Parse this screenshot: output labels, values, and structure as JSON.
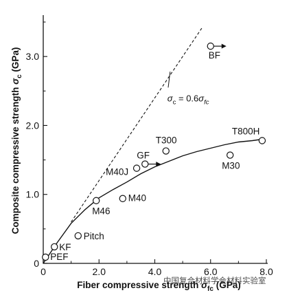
{
  "chart_data": {
    "type": "scatter",
    "xlabel_main": "Fiber compressive strength",
    "xlabel_symbol": "σ",
    "xlabel_sub": "fc",
    "xlabel_unit": "(GPa)",
    "ylabel_main": "Composite compressive strength",
    "ylabel_symbol": "σ",
    "ylabel_sub": "c",
    "ylabel_unit": "(GPa)",
    "xlim": [
      0,
      8.0
    ],
    "ylim": [
      0,
      3.6
    ],
    "xticks": [
      "0",
      "2.0",
      "4.0",
      "6.0",
      "8.0"
    ],
    "yticks": [
      "0",
      "1.0",
      "2.0",
      "3.0"
    ],
    "grid": false,
    "points": [
      {
        "label": "PEF",
        "x": 0.08,
        "y": 0.09
      },
      {
        "label": "KF",
        "x": 0.4,
        "y": 0.24
      },
      {
        "label": "Pitch",
        "x": 1.25,
        "y": 0.4
      },
      {
        "label": "M46",
        "x": 1.9,
        "y": 0.91
      },
      {
        "label": "M40",
        "x": 2.85,
        "y": 0.94
      },
      {
        "label": "M40J",
        "x": 3.35,
        "y": 1.38
      },
      {
        "label": "GF",
        "x": 3.65,
        "y": 1.44
      },
      {
        "label": "T300",
        "x": 4.4,
        "y": 1.63
      },
      {
        "label": "M30",
        "x": 6.7,
        "y": 1.57
      },
      {
        "label": "T800H",
        "x": 7.85,
        "y": 1.78
      },
      {
        "label": "BF",
        "x": 6.0,
        "y": 3.15
      }
    ],
    "arrows_from": [
      "GF",
      "BF"
    ],
    "dashed_line": {
      "slope": 0.6,
      "annotation_lhs": "σ",
      "annotation_lhs_sub": "c",
      "annotation_mid": " = 0.6",
      "annotation_rhs": "σ",
      "annotation_rhs_sub": "fc",
      "x_range": [
        1.0,
        5.7
      ]
    },
    "fit_curve": [
      [
        0,
        0
      ],
      [
        0.5,
        0.3
      ],
      [
        1.0,
        0.58
      ],
      [
        1.5,
        0.78
      ],
      [
        2.0,
        0.95
      ],
      [
        2.5,
        1.07
      ],
      [
        3.0,
        1.18
      ],
      [
        3.5,
        1.3
      ],
      [
        4.0,
        1.4
      ],
      [
        4.5,
        1.48
      ],
      [
        5.0,
        1.56
      ],
      [
        5.5,
        1.62
      ],
      [
        6.0,
        1.67
      ],
      [
        6.5,
        1.72
      ],
      [
        7.0,
        1.76
      ],
      [
        7.5,
        1.78
      ],
      [
        7.85,
        1.8
      ]
    ]
  },
  "watermark": "中国复合材料学会材料实验室"
}
